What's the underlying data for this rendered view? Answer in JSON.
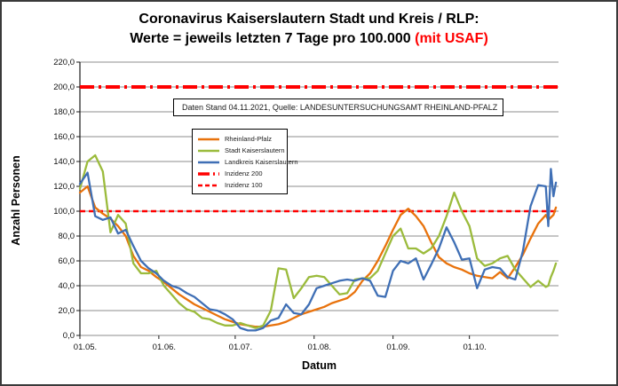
{
  "title": {
    "line1": "Coronavirus Kaiserslautern Stadt und Kreis / RLP:",
    "line2_prefix": "Werte = jeweils letzten 7 Tage pro 100.000 ",
    "line2_highlight": "(mit USAF)",
    "highlight_color": "#ff0000"
  },
  "info_box": {
    "text": "Daten Stand 04.11.2021, Quelle: LANDESUNTERSUCHUNGSAMT RHEINLAND-PFALZ"
  },
  "axes": {
    "y_label": "Anzahl Personen",
    "x_label": "Datum"
  },
  "legend": [
    {
      "label": "Rheinland-Pfalz",
      "color": "#e8720c",
      "style": "solid"
    },
    {
      "label": "Stadt Kaiserslautern",
      "color": "#9bbb3c",
      "style": "solid"
    },
    {
      "label": "Landkreis Kaiserslautern",
      "color": "#3f6fb5",
      "style": "solid"
    },
    {
      "label": "Inzidenz 200",
      "color": "#ff0000",
      "style": "dash-thick"
    },
    {
      "label": "Inzidenz 100",
      "color": "#ff0000",
      "style": "dash"
    }
  ],
  "chart_data": {
    "type": "line",
    "title": "Coronavirus Kaiserslautern Stadt und Kreis / RLP: Werte = jeweils letzten 7 Tage pro 100.000 (mit USAF)",
    "xlabel": "Datum",
    "ylabel": "Anzahl Personen",
    "ylim": [
      0,
      220
    ],
    "y_step": 20,
    "y_tick_labels": [
      "0,0",
      "20,0",
      "40,0",
      "60,0",
      "80,0",
      "100,0",
      "120,0",
      "140,0",
      "160,0",
      "180,0",
      "200,0",
      "220,0"
    ],
    "x_tick_labels": [
      "01.05.",
      "01.06.",
      "01.07.",
      "01.08.",
      "01.09.",
      "01.10."
    ],
    "grid": "horizontal-only",
    "legend_position": "upper-left-inside",
    "reference_lines": [
      {
        "name": "Inzidenz 200",
        "value": 200,
        "color": "#ff0000",
        "style": "thick-dashed"
      },
      {
        "name": "Inzidenz 100",
        "value": 100,
        "color": "#ff0000",
        "style": "dashed"
      }
    ],
    "dates": [
      "01.05.",
      "04.05.",
      "07.05.",
      "10.05.",
      "13.05.",
      "16.05.",
      "19.05.",
      "22.05.",
      "25.05.",
      "28.05.",
      "31.05.",
      "03.06.",
      "06.06.",
      "09.06.",
      "12.06.",
      "15.06.",
      "18.06.",
      "21.06.",
      "24.06.",
      "27.06.",
      "30.06.",
      "03.07.",
      "06.07.",
      "09.07.",
      "12.07.",
      "15.07.",
      "18.07.",
      "21.07.",
      "24.07.",
      "27.07.",
      "30.07.",
      "02.08.",
      "05.08.",
      "08.08.",
      "11.08.",
      "14.08.",
      "17.08.",
      "20.08.",
      "23.08.",
      "26.08.",
      "29.08.",
      "01.09.",
      "04.09.",
      "07.09.",
      "10.09.",
      "13.09.",
      "16.09.",
      "19.09.",
      "22.09.",
      "25.09.",
      "28.09.",
      "01.10.",
      "04.10.",
      "07.10.",
      "10.10.",
      "13.10.",
      "16.10.",
      "19.10.",
      "22.10.",
      "25.10.",
      "28.10.",
      "31.10.",
      "01.11.",
      "02.11.",
      "03.11.",
      "04.11."
    ],
    "series": [
      {
        "name": "Rheinland-Pfalz",
        "color": "#e8720c",
        "values": [
          115,
          120,
          103,
          98,
          94,
          88,
          80,
          64,
          55,
          52,
          47,
          43,
          38,
          33,
          29,
          25,
          22,
          19,
          16,
          13,
          11,
          9,
          8,
          7,
          7,
          8,
          9,
          11,
          14,
          17,
          19,
          21,
          23,
          26,
          28,
          30,
          35,
          44,
          50,
          60,
          72,
          85,
          97,
          102,
          96,
          88,
          75,
          63,
          58,
          55,
          53,
          50,
          48,
          47,
          46,
          51,
          46,
          55,
          65,
          78,
          90,
          97,
          93,
          95,
          97,
          103
        ]
      },
      {
        "name": "Stadt Kaiserslautern",
        "color": "#9bbb3c",
        "values": [
          118,
          140,
          145,
          132,
          83,
          97,
          90,
          58,
          50,
          50,
          52,
          40,
          33,
          26,
          21,
          19,
          14,
          13,
          10,
          8,
          8,
          10,
          8,
          6,
          8,
          20,
          54,
          53,
          30,
          38,
          47,
          48,
          47,
          40,
          33,
          34,
          45,
          46,
          46,
          52,
          66,
          80,
          86,
          70,
          70,
          66,
          70,
          80,
          96,
          115,
          100,
          88,
          62,
          56,
          58,
          62,
          64,
          53,
          46,
          39,
          44,
          39,
          40,
          47,
          52,
          58
        ]
      },
      {
        "name": "Landkreis Kaiserslautern",
        "color": "#3f6fb5",
        "values": [
          122,
          131,
          96,
          93,
          95,
          82,
          85,
          72,
          60,
          54,
          50,
          44,
          40,
          38,
          34,
          31,
          26,
          21,
          20,
          17,
          13,
          6,
          4,
          4,
          6,
          12,
          14,
          25,
          18,
          17,
          25,
          38,
          40,
          42,
          44,
          45,
          44,
          46,
          44,
          32,
          31,
          52,
          60,
          58,
          62,
          45,
          57,
          70,
          87,
          75,
          61,
          62,
          38,
          53,
          55,
          54,
          47,
          45,
          68,
          104,
          121,
          120,
          88,
          134,
          112,
          123
        ]
      }
    ]
  },
  "colors": {
    "gridline": "#8c8c8c",
    "axis": "#1a1a1a",
    "reference_red": "#ff0000"
  }
}
